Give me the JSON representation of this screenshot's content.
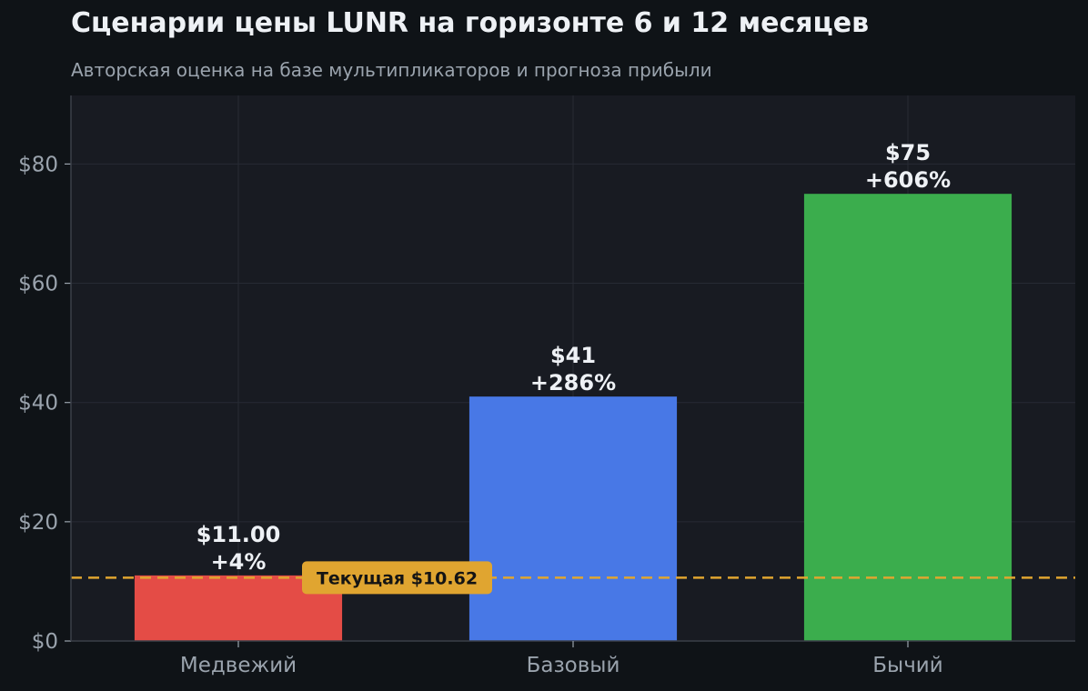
{
  "header": {
    "title": "Сценарии цены LUNR на горизонте 6 и 12 месяцев",
    "subtitle": "Авторская оценка на базе мультипликаторов и прогноза прибыли"
  },
  "chart_data": {
    "type": "bar",
    "title": "Сценарии цены LUNR на горизонте 6 и 12 месяцев",
    "subtitle": "Авторская оценка на базе мультипликаторов и прогноза прибыли",
    "xlabel": "",
    "ylabel": "",
    "categories": [
      "Медвежий",
      "Базовый",
      "Бычий"
    ],
    "values": [
      11,
      41,
      75
    ],
    "value_labels": [
      "$11.00",
      "$41",
      "$75"
    ],
    "change_labels": [
      "+4%",
      "+286%",
      "+606%"
    ],
    "colors": [
      "#e44c46",
      "#4878e6",
      "#3bad4d"
    ],
    "ylim": [
      0,
      91.5
    ],
    "yticks": [
      0,
      20,
      40,
      60,
      80
    ],
    "ytick_labels": [
      "$0",
      "$20",
      "$40",
      "$60",
      "$80"
    ],
    "grid": true,
    "reference_line": {
      "value": 10.62,
      "label": "Текущая $10.62",
      "color": "#e0a530",
      "style": "dashed"
    },
    "background": "#181b22",
    "page_background": "#0f1317"
  }
}
